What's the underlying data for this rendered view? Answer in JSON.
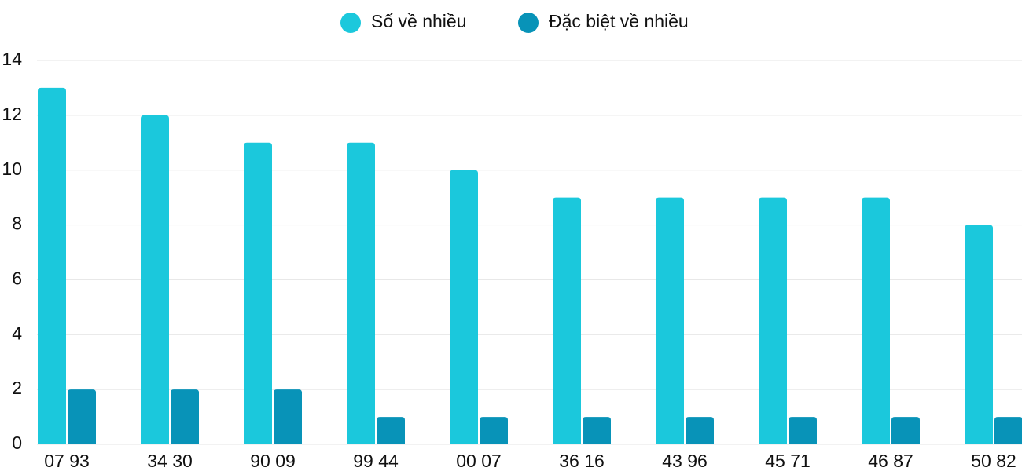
{
  "chart_data": {
    "type": "bar",
    "categories": [
      "07 93",
      "34 30",
      "90 09",
      "99 44",
      "00 07",
      "36 16",
      "43 96",
      "45 71",
      "46 87",
      "50 82"
    ],
    "series": [
      {
        "name": "Số về nhiều",
        "color": "#1bc8dc",
        "values": [
          13,
          12,
          11,
          11,
          10,
          9,
          9,
          9,
          9,
          8
        ]
      },
      {
        "name": "Đặc biệt về nhiều",
        "color": "#0893b8",
        "values": [
          2,
          2,
          2,
          1,
          1,
          1,
          1,
          1,
          1,
          1
        ]
      }
    ],
    "ylim": [
      0,
      14
    ],
    "yticks": [
      0,
      2,
      4,
      6,
      8,
      10,
      12,
      14
    ],
    "grid": true,
    "legend": "top"
  }
}
